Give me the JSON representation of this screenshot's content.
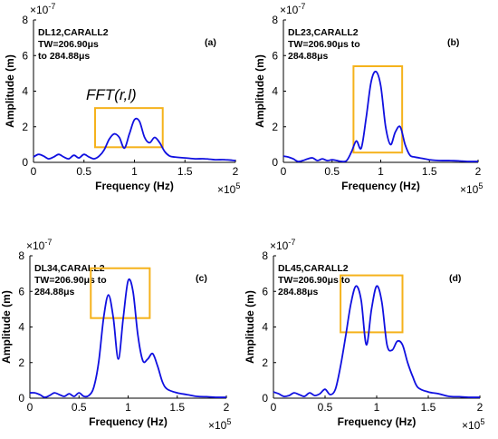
{
  "colors": {
    "line": "#1010e0",
    "highlight": "#f5b21b",
    "axis": "#000000"
  },
  "chart_data": [
    {
      "type": "line",
      "panel_label": "(a)",
      "annotation_lines": [
        "DL12,CARALL2",
        "TW=206.90μs",
        "to 284.88μs"
      ],
      "highlight_label": "FFT(r,l)",
      "exponent_y": "×10",
      "exponent_y_power": "-7",
      "exponent_x": "×10",
      "exponent_x_power": "5",
      "xlabel": "Frequency (Hz)",
      "ylabel": "Amplitude (m)",
      "xlim": [
        0,
        2
      ],
      "ylim": [
        0,
        8
      ],
      "xticks": [
        0,
        0.5,
        1,
        1.5,
        2
      ],
      "xtick_labels": [
        "0",
        "0.5",
        "1",
        "1.5",
        "2"
      ],
      "yticks": [
        0,
        2,
        4,
        6,
        8
      ],
      "ytick_labels": [
        "0",
        "2",
        "4",
        "6",
        "8"
      ],
      "highlight_box": {
        "x0": 0.61,
        "x1": 1.28,
        "y0": 0.85,
        "y1": 3.05
      },
      "x": [
        0,
        0.05,
        0.1,
        0.15,
        0.2,
        0.25,
        0.3,
        0.35,
        0.4,
        0.45,
        0.5,
        0.55,
        0.6,
        0.65,
        0.7,
        0.75,
        0.8,
        0.85,
        0.9,
        0.95,
        1.0,
        1.05,
        1.1,
        1.15,
        1.2,
        1.25,
        1.3,
        1.35,
        1.4,
        1.5,
        1.6,
        1.7,
        1.8,
        1.9,
        2.0
      ],
      "y": [
        0.3,
        0.45,
        0.35,
        0.2,
        0.3,
        0.45,
        0.3,
        0.2,
        0.4,
        0.25,
        0.45,
        0.3,
        0.2,
        0.35,
        0.7,
        1.3,
        1.6,
        1.4,
        0.8,
        1.6,
        2.4,
        2.3,
        1.4,
        1.1,
        1.4,
        1.1,
        0.6,
        0.35,
        0.3,
        0.25,
        0.2,
        0.2,
        0.15,
        0.15,
        0.1
      ]
    },
    {
      "type": "line",
      "panel_label": "(b)",
      "annotation_lines": [
        "DL23,CARALL2",
        "TW=206.90μs to",
        "284.88μs"
      ],
      "exponent_y": "×10",
      "exponent_y_power": "-7",
      "exponent_x": "×10",
      "exponent_x_power": "5",
      "xlabel": "Frequency (Hz)",
      "ylabel": "Amplitude (m)",
      "xlim": [
        0,
        2
      ],
      "ylim": [
        0,
        8
      ],
      "xticks": [
        0,
        0.5,
        1,
        1.5,
        2
      ],
      "xtick_labels": [
        "0",
        "0.5",
        "1",
        "1.5",
        "2"
      ],
      "yticks": [
        0,
        2,
        4,
        6,
        8
      ],
      "ytick_labels": [
        "0",
        "2",
        "4",
        "6",
        "8"
      ],
      "highlight_box": {
        "x0": 0.72,
        "x1": 1.22,
        "y0": 0.55,
        "y1": 5.4
      },
      "x": [
        0,
        0.05,
        0.1,
        0.15,
        0.2,
        0.25,
        0.3,
        0.35,
        0.4,
        0.45,
        0.5,
        0.55,
        0.6,
        0.65,
        0.7,
        0.75,
        0.8,
        0.85,
        0.9,
        0.95,
        1.0,
        1.05,
        1.1,
        1.15,
        1.2,
        1.25,
        1.3,
        1.35,
        1.4,
        1.5,
        1.6,
        1.7,
        1.8,
        1.9,
        2.0
      ],
      "y": [
        0.35,
        0.3,
        0.2,
        0.05,
        0.1,
        0.2,
        0.25,
        0.1,
        0.2,
        0.1,
        0.15,
        0.1,
        0.05,
        0.1,
        0.6,
        1.2,
        0.8,
        2.5,
        4.5,
        5.1,
        4.3,
        2.0,
        1.0,
        1.7,
        2.0,
        1.0,
        0.4,
        0.3,
        0.25,
        0.15,
        0.1,
        0.1,
        0.08,
        0.05,
        0.05
      ]
    },
    {
      "type": "line",
      "panel_label": "(c)",
      "annotation_lines": [
        "DL34,CARALL2",
        "TW=206.90μs to",
        "284.88μs"
      ],
      "exponent_y": "×10",
      "exponent_y_power": "-7",
      "exponent_x": "×10",
      "exponent_x_power": "5",
      "xlabel": "Frequency (Hz)",
      "ylabel": "Amplitude (m)",
      "xlim": [
        0,
        2
      ],
      "ylim": [
        0,
        8
      ],
      "xticks": [
        0,
        0.5,
        1,
        1.5,
        2
      ],
      "xtick_labels": [
        "0",
        "0.5",
        "1",
        "1.5",
        "2"
      ],
      "yticks": [
        0,
        2,
        4,
        6,
        8
      ],
      "ytick_labels": [
        "0",
        "2",
        "4",
        "6",
        "8"
      ],
      "highlight_box": {
        "x0": 0.62,
        "x1": 1.22,
        "y0": 4.5,
        "y1": 7.3
      },
      "x": [
        0,
        0.05,
        0.1,
        0.15,
        0.2,
        0.25,
        0.3,
        0.35,
        0.4,
        0.45,
        0.5,
        0.55,
        0.6,
        0.65,
        0.7,
        0.75,
        0.8,
        0.85,
        0.9,
        0.95,
        1.0,
        1.05,
        1.1,
        1.15,
        1.2,
        1.25,
        1.3,
        1.35,
        1.4,
        1.5,
        1.6,
        1.7,
        1.8,
        1.9,
        2.0
      ],
      "y": [
        0.3,
        0.3,
        0.2,
        0.05,
        0.15,
        0.3,
        0.2,
        0.1,
        0.25,
        0.1,
        0.3,
        0.1,
        0.15,
        0.6,
        2.0,
        4.5,
        5.8,
        4.5,
        2.2,
        4.5,
        6.6,
        6.0,
        3.5,
        2.1,
        2.2,
        2.5,
        1.8,
        0.9,
        0.5,
        0.3,
        0.2,
        0.1,
        0.08,
        0.05,
        0.05
      ]
    },
    {
      "type": "line",
      "panel_label": "(d)",
      "annotation_lines": [
        "DL45,CARALL2",
        "TW=206.90μs to",
        "284.88μs"
      ],
      "exponent_y": "×10",
      "exponent_y_power": "-7",
      "exponent_x": "×10",
      "exponent_x_power": "5",
      "xlabel": "Frequency (Hz)",
      "ylabel": "Amplitude (m)",
      "xlim": [
        0,
        2
      ],
      "ylim": [
        0,
        8
      ],
      "xticks": [
        0,
        0.5,
        1,
        1.5,
        2
      ],
      "xtick_labels": [
        "0",
        "0.5",
        "1",
        "1.5",
        "2"
      ],
      "yticks": [
        0,
        2,
        4,
        6,
        8
      ],
      "ytick_labels": [
        "0",
        "2",
        "4",
        "6",
        "8"
      ],
      "highlight_box": {
        "x0": 0.65,
        "x1": 1.25,
        "y0": 3.7,
        "y1": 6.9
      },
      "x": [
        0,
        0.05,
        0.1,
        0.15,
        0.2,
        0.25,
        0.3,
        0.35,
        0.4,
        0.45,
        0.5,
        0.55,
        0.6,
        0.65,
        0.7,
        0.75,
        0.8,
        0.85,
        0.9,
        0.95,
        1.0,
        1.05,
        1.1,
        1.15,
        1.2,
        1.25,
        1.3,
        1.35,
        1.4,
        1.5,
        1.6,
        1.7,
        1.8,
        1.9,
        2.0
      ],
      "y": [
        0.35,
        0.25,
        0.1,
        0.15,
        0.3,
        0.2,
        0.1,
        0.3,
        0.15,
        0.25,
        0.5,
        0.2,
        0.5,
        1.8,
        3.5,
        5.3,
        6.3,
        5.5,
        3.0,
        5.0,
        6.3,
        5.4,
        3.0,
        2.7,
        3.2,
        3.0,
        2.0,
        1.2,
        0.6,
        0.35,
        0.25,
        0.1,
        0.08,
        0.05,
        0.05
      ]
    }
  ]
}
